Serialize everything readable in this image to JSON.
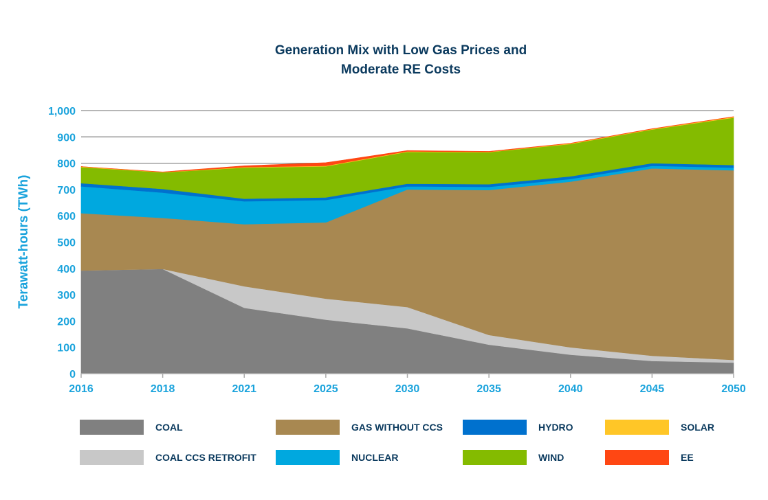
{
  "chart_data": {
    "type": "area",
    "stacked": true,
    "title": [
      "Generation Mix with Low Gas Prices and",
      "Moderate RE Costs"
    ],
    "xlabel": "",
    "ylabel": "Terawatt-hours (TWh)",
    "ylim": [
      0,
      1000
    ],
    "yticks": [
      "0",
      "100",
      "200",
      "300",
      "400",
      "500",
      "600",
      "700",
      "800",
      "900",
      "1,000"
    ],
    "ytick_values": [
      0,
      100,
      200,
      300,
      400,
      500,
      600,
      700,
      800,
      900,
      1000
    ],
    "categories": [
      "2016",
      "2018",
      "2021",
      "2025",
      "2030",
      "2035",
      "2040",
      "2045",
      "2050"
    ],
    "grid": true,
    "legend_position": "bottom",
    "series": [
      {
        "name": "COAL",
        "color": "#808080",
        "values": [
          392,
          398,
          250,
          205,
          172,
          110,
          72,
          48,
          42
        ]
      },
      {
        "name": "COAL CCS RETROFIT",
        "color": "#c8c8c8",
        "values": [
          0,
          0,
          82,
          80,
          81,
          37,
          28,
          20,
          10
        ]
      },
      {
        "name": "GAS WITHOUT CCS",
        "color": "#a88851",
        "values": [
          218,
          194,
          236,
          290,
          447,
          551,
          630,
          712,
          721
        ]
      },
      {
        "name": "NUCLEAR",
        "color": "#00a8df",
        "values": [
          102,
          96,
          87,
          85,
          12,
          12,
          10,
          10,
          10
        ]
      },
      {
        "name": "HYDRO",
        "color": "#0071ce",
        "values": [
          12,
          14,
          10,
          10,
          10,
          10,
          10,
          10,
          10
        ]
      },
      {
        "name": "WIND",
        "color": "#84bb00",
        "values": [
          61,
          63,
          118,
          118,
          121,
          122,
          123,
          128,
          180
        ]
      },
      {
        "name": "SOLAR",
        "color": "#ffc627",
        "values": [
          2,
          1,
          2,
          2,
          2,
          1,
          2,
          2,
          3
        ]
      },
      {
        "name": "EE",
        "color": "#ff4713",
        "values": [
          0,
          1,
          5,
          12,
          3,
          2,
          1,
          1,
          1
        ]
      }
    ],
    "legend_order": [
      "COAL",
      "GAS WITHOUT CCS",
      "HYDRO",
      "SOLAR",
      "COAL CCS RETROFIT",
      "NUCLEAR",
      "WIND",
      "EE"
    ]
  },
  "colors": {
    "title": "#0b3a5e",
    "axis_text": "#1aa3dc"
  }
}
